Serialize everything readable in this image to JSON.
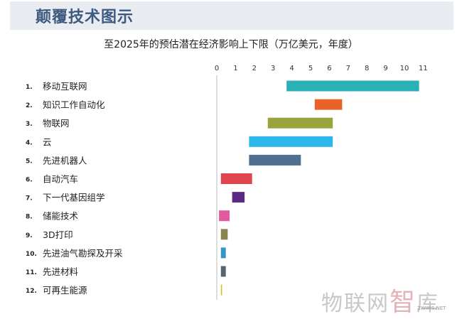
{
  "header": {
    "title": "颠覆技术图示"
  },
  "chart_data": {
    "type": "bar",
    "title": "至2025年的预估潜在经济影响上下限（万亿美元，年度）",
    "xlim": [
      0,
      11
    ],
    "ticks": [
      0,
      1,
      2,
      3,
      4,
      5,
      6,
      7,
      8,
      9,
      10,
      11
    ],
    "categories": [
      {
        "num": "1.",
        "name": "移动互联网",
        "low": 3.7,
        "high": 10.8,
        "color": "#2ab1b8"
      },
      {
        "num": "2.",
        "name": "知识工作自动化",
        "low": 5.2,
        "high": 6.7,
        "color": "#e8622a"
      },
      {
        "num": "3.",
        "name": "物联网",
        "low": 2.7,
        "high": 6.2,
        "color": "#9ba33c"
      },
      {
        "num": "4.",
        "name": "云",
        "low": 1.7,
        "high": 6.2,
        "color": "#2cb6ea"
      },
      {
        "num": "5.",
        "name": "先进机器人",
        "low": 1.7,
        "high": 4.5,
        "color": "#4f6f8f"
      },
      {
        "num": "6.",
        "name": "自动汽车",
        "low": 0.2,
        "high": 1.9,
        "color": "#e0444d"
      },
      {
        "num": "7.",
        "name": "下一代基因组学",
        "low": 0.8,
        "high": 1.5,
        "color": "#5b2a86"
      },
      {
        "num": "8.",
        "name": "储能技术",
        "low": 0.1,
        "high": 0.7,
        "color": "#df5a9e"
      },
      {
        "num": "9.",
        "name": "3D打印",
        "low": 0.2,
        "high": 0.6,
        "color": "#8a8550"
      },
      {
        "num": "10.",
        "name": "先进油气勘探及开采",
        "low": 0.2,
        "high": 0.5,
        "color": "#3a93c8"
      },
      {
        "num": "11.",
        "name": "先进材料",
        "low": 0.2,
        "high": 0.5,
        "color": "#566573"
      },
      {
        "num": "12.",
        "name": "可再生能源",
        "low": 0.2,
        "high": 0.3,
        "color": "#d9c12e"
      }
    ]
  },
  "watermark": {
    "text_a": "物联网",
    "text_b": "智",
    "text_c": "库",
    "small": "ZWIMS.NET"
  }
}
